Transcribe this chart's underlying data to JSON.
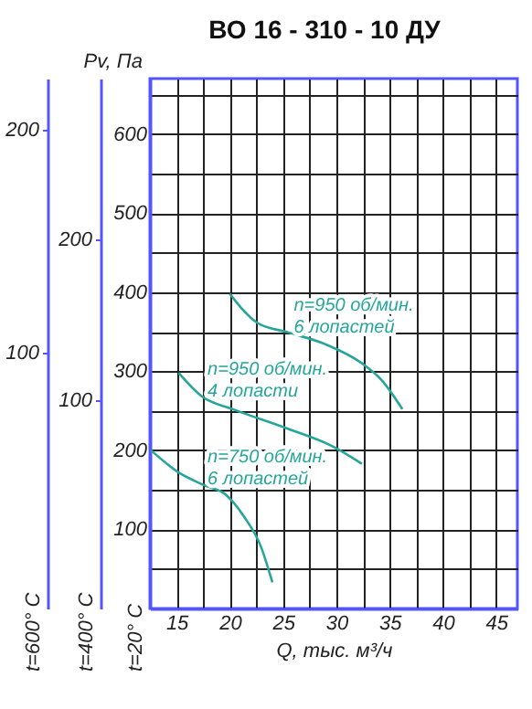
{
  "chart_data": {
    "type": "line",
    "title": "ВО 16 - 310 - 10 ДУ",
    "xlabel": "Q, тыс. м³/ч",
    "ylabel": "t=20° C",
    "y2label": "t=400° C",
    "y3label": "t=600° C",
    "xlim": [
      12.5,
      47
    ],
    "xticks": [
      15,
      {
        "value": 17.5,
        "label": null
      },
      20,
      {
        "value": 22.5,
        "label": null
      },
      25,
      {
        "value": 27.5,
        "label": null
      },
      30,
      {
        "value": 32.5,
        "label": null
      },
      35,
      {
        "value": 37.5,
        "label": null
      },
      40,
      {
        "value": 42.5,
        "label": null
      },
      45
    ],
    "ylim": [
      0,
      670
    ],
    "yticks": [
      {
        "value": 50,
        "label": null
      },
      100,
      {
        "value": 150,
        "label": null
      },
      200,
      {
        "value": 250,
        "label": null
      },
      300,
      {
        "value": 350,
        "label": null
      },
      400,
      {
        "value": 450,
        "label": null
      },
      500,
      {
        "value": 550,
        "label": null
      },
      600,
      {
        "value": 650,
        "label": null
      }
    ],
    "y2lim": [
      -30,
      300
    ],
    "y2ticks": [
      100,
      200
    ],
    "y3lim": [
      -15,
      223
    ],
    "y3ticks": [
      100,
      200
    ],
    "grid": true,
    "legend": false,
    "marker": "none",
    "line_style": "solid",
    "series": [
      {
        "name": "n=950 об/мин.\n6 лопастей",
        "color": "#26a69a",
        "x": [
          20,
          22.6,
          25.5,
          29,
          32.4,
          34.3,
          36.2
        ],
        "values": [
          398,
          361,
          349,
          334,
          310,
          288,
          252
        ]
      },
      {
        "name": "n=950 об/мин.\n4 лопасти",
        "color": "#26a69a",
        "x": [
          15.2,
          17.4,
          20.3,
          25.5,
          29.5,
          32.4
        ],
        "values": [
          298,
          268,
          252,
          227,
          206,
          183
        ]
      },
      {
        "name": "n=750 об/мин.\n6 лопастей",
        "color": "#26a69a",
        "x": [
          12.6,
          15.2,
          17.4,
          19.7,
          21.4,
          22.9,
          24
        ],
        "values": [
          200,
          172,
          157,
          143,
          115,
          79,
          33
        ]
      }
    ],
    "annotations": [
      "Pv, Па"
    ]
  }
}
